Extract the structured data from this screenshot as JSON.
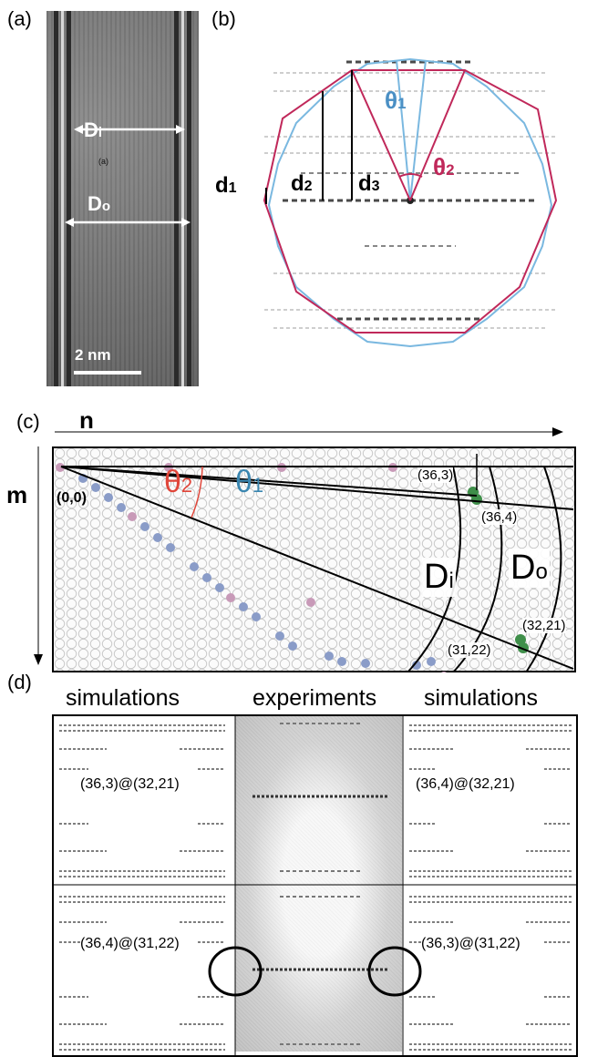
{
  "panels": {
    "a": {
      "label": "(a)",
      "inner_diameter": {
        "main": "D",
        "sub": "i"
      },
      "outer_diameter": {
        "main": "D",
        "sub": "o"
      },
      "small_mark": "(a)",
      "scale_bar": "2 nm"
    },
    "b": {
      "label": "(b)",
      "d1": {
        "main": "d",
        "sub": "1"
      },
      "d2": {
        "main": "d",
        "sub": "2"
      },
      "d3": {
        "main": "d",
        "sub": "3"
      },
      "theta1": {
        "main": "θ",
        "sub": "1"
      },
      "theta2": {
        "main": "θ",
        "sub": "2"
      }
    },
    "c": {
      "label": "(c)",
      "axis_n": "n",
      "axis_m": "m",
      "origin": "(0,0)",
      "theta2": {
        "main": "θ",
        "sub": "2"
      },
      "theta1": {
        "main": "θ",
        "sub": "1"
      },
      "point_36_3": "(36,3)",
      "point_36_4": "(36,4)",
      "point_32_21": "(32,21)",
      "point_31_22": "(31,22)",
      "Di": {
        "main": "D",
        "sub": "i"
      },
      "Do": {
        "main": "D",
        "sub": "o"
      }
    },
    "d": {
      "label": "(d)",
      "columns": [
        "simulations",
        "experiments",
        "simulations"
      ],
      "captions": {
        "top_left": "(36,3)@(32,21)",
        "top_right": "(36,4)@(32,21)",
        "bottom_left": "(36,4)@(31,22)",
        "bottom_right": "(36,3)@(31,22)"
      }
    }
  },
  "colors": {
    "theta1_blue": "#4a8fc4",
    "theta2_red": "#c0285a",
    "polygon_blue": "#7ab8e0",
    "polygon_red": "#c0285a",
    "c_theta2_red": "#e0463a",
    "c_theta1_blue": "#3a86b0",
    "lattice_blue_dot": "#8a9cc8",
    "lattice_pink_dot": "#c89ab8",
    "lattice_green_dot": "#3f8f4a"
  }
}
